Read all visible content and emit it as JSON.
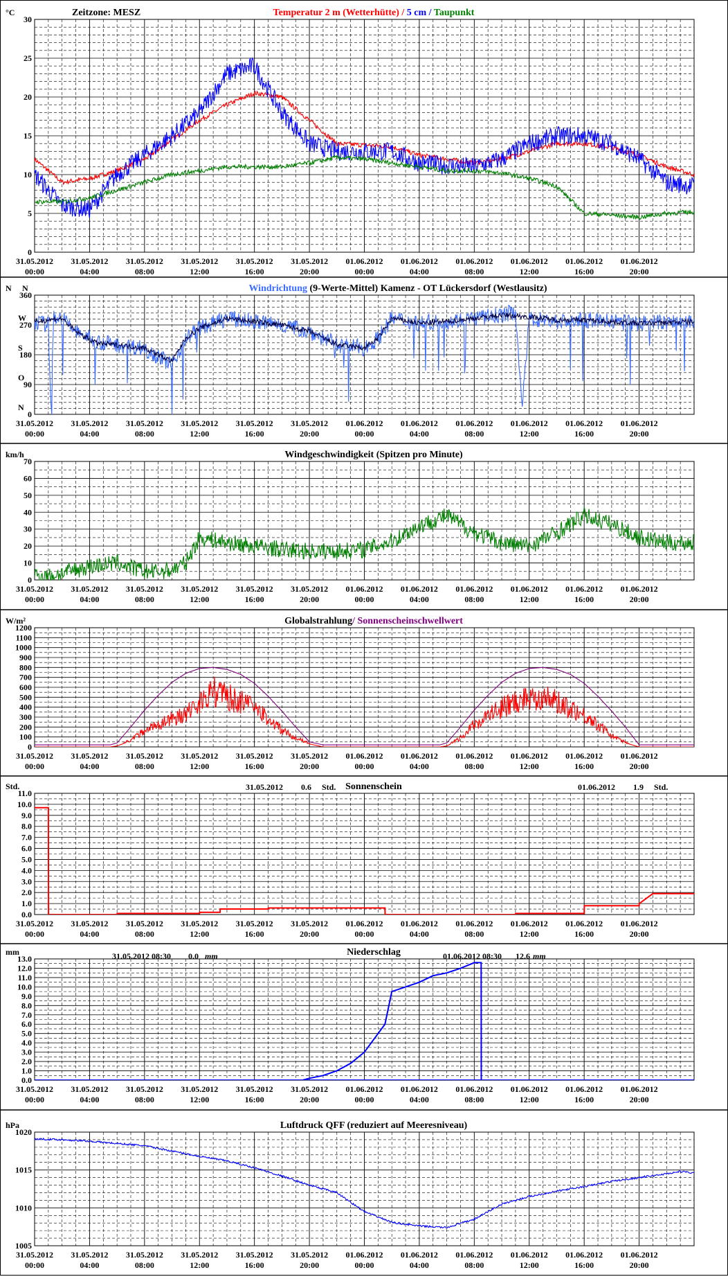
{
  "x_tick_labels": [
    [
      "31.05.2012",
      "00:00"
    ],
    [
      "31.05.2012",
      "04:00"
    ],
    [
      "31.05.2012",
      "08:00"
    ],
    [
      "31.05.2012",
      "12:00"
    ],
    [
      "31.05.2012",
      "16:00"
    ],
    [
      "31.05.2012",
      "20:00"
    ],
    [
      "01.06.2012",
      "00:00"
    ],
    [
      "01.06.2012",
      "04:00"
    ],
    [
      "01.06.2012",
      "08:00"
    ],
    [
      "01.06.2012",
      "12:00"
    ],
    [
      "01.06.2012",
      "16:00"
    ],
    [
      "01.06.2012",
      "20:00"
    ]
  ],
  "colors": {
    "red": "#ff0000",
    "blue": "#0000ff",
    "green": "#008000",
    "lightblue": "#3b6cff",
    "navy": "#000040",
    "purple": "#800080"
  },
  "chart_data": [
    {
      "id": "temp",
      "type": "line",
      "unit": "°C",
      "ylim": [
        0,
        30
      ],
      "yticks": [
        0,
        5,
        10,
        15,
        20,
        25,
        30
      ],
      "annotations": [
        {
          "text": "Zeitzone: MESZ"
        }
      ],
      "title_parts": [
        {
          "text": "Temperatur 2 m (Wetterhütte)",
          "color": "#ff0000"
        },
        {
          "text": " / ",
          "color": "#ff0000"
        },
        {
          "text": "5 cm",
          "color": "#0000ff"
        },
        {
          "text": " / ",
          "color": "#0000ff"
        },
        {
          "text": "Taupunkt",
          "color": "#008000"
        }
      ],
      "series": [
        {
          "color": "#ff0000",
          "noise": 0.3,
          "x": [
            0,
            2,
            4,
            6,
            8,
            10,
            12,
            14,
            16,
            18,
            20,
            22,
            24,
            26,
            28,
            30,
            32,
            34,
            36,
            38,
            40,
            42,
            44,
            46,
            48
          ],
          "values": [
            12,
            9,
            9.5,
            10.5,
            12,
            14.5,
            17,
            19,
            20.5,
            20,
            17,
            14,
            13.8,
            13.6,
            12.5,
            12,
            11.5,
            12,
            13,
            14,
            14,
            13.5,
            12.5,
            11,
            10
          ]
        },
        {
          "color": "#0000ff",
          "noise": 1.2,
          "x": [
            0,
            2,
            4,
            6,
            8,
            10,
            12,
            14,
            16,
            18,
            20,
            22,
            24,
            26,
            28,
            30,
            32,
            34,
            36,
            38,
            40,
            42,
            44,
            46,
            48
          ],
          "values": [
            10,
            6,
            5.5,
            10,
            12.5,
            15,
            18,
            23,
            24,
            18,
            14,
            13,
            13,
            13,
            11.5,
            11.2,
            11,
            12,
            14,
            15,
            15,
            14,
            12,
            9,
            8.5
          ]
        },
        {
          "color": "#008000",
          "noise": 0.3,
          "x": [
            0,
            2,
            4,
            6,
            8,
            10,
            12,
            14,
            16,
            18,
            20,
            22,
            24,
            26,
            28,
            30,
            32,
            34,
            36,
            38,
            40,
            42,
            44,
            46,
            48
          ],
          "values": [
            6.5,
            6.5,
            7,
            8,
            9,
            10,
            10.5,
            11,
            11,
            11,
            11.5,
            12.2,
            12,
            11.5,
            11,
            10.5,
            10.5,
            10.2,
            9.5,
            8.5,
            5,
            4.8,
            4.5,
            5,
            5.2
          ]
        }
      ]
    },
    {
      "id": "wdir",
      "type": "line",
      "unit": "N",
      "ylim": [
        0,
        360
      ],
      "yticks": [
        0,
        90,
        180,
        270,
        360
      ],
      "dir_labels": [
        "N",
        "O",
        "S",
        "W",
        "N"
      ],
      "title_parts": [
        {
          "text": "Windrichtung",
          "color": "#3b6cff"
        },
        {
          "text": " (9-Werte-Mittel)",
          "color": "#000000"
        },
        {
          "text": "          Kamenz - OT Lückersdorf (Westlausitz)",
          "color": "#000000"
        }
      ],
      "series": [
        {
          "color": "#3b6cff",
          "noise": 25,
          "x": [
            0,
            1,
            1.2,
            1.4,
            2,
            3,
            4.5,
            6,
            8,
            10,
            11,
            12,
            14,
            16,
            18,
            20,
            22,
            24,
            25,
            26,
            28,
            30,
            32,
            34,
            35,
            35.5,
            36,
            38,
            40,
            44,
            48
          ],
          "values": [
            280,
            270,
            20,
            300,
            290,
            250,
            220,
            210,
            200,
            150,
            230,
            260,
            290,
            280,
            270,
            250,
            210,
            200,
            230,
            290,
            275,
            280,
            290,
            300,
            310,
            20,
            290,
            280,
            285,
            275,
            280
          ]
        },
        {
          "color": "#000040",
          "noise": 8,
          "x": [
            0,
            2,
            3,
            4.5,
            6,
            8,
            10,
            11,
            12,
            14,
            16,
            18,
            20,
            22,
            24,
            25,
            26,
            28,
            30,
            32,
            34,
            36,
            38,
            40,
            44,
            48
          ],
          "values": [
            280,
            290,
            250,
            215,
            210,
            200,
            160,
            230,
            260,
            290,
            280,
            270,
            250,
            210,
            200,
            230,
            290,
            275,
            280,
            290,
            300,
            295,
            285,
            285,
            275,
            280
          ]
        }
      ]
    },
    {
      "id": "wspd",
      "type": "line",
      "unit": "km/h",
      "ylim": [
        0,
        70
      ],
      "yticks": [
        0,
        10,
        20,
        30,
        40,
        50,
        60,
        70
      ],
      "title_parts": [
        {
          "text": "Windgeschwindigkeit (Spitzen pro Minute)",
          "color": "#000000"
        }
      ],
      "series": [
        {
          "color": "#008000",
          "noise": 5,
          "x": [
            0,
            1,
            2,
            4,
            6,
            8,
            9,
            10,
            11,
            12,
            14,
            16,
            18,
            20,
            22,
            24,
            26,
            28,
            30,
            32,
            34,
            36,
            38,
            40,
            42,
            44,
            46,
            48
          ],
          "values": [
            3,
            2,
            4,
            8,
            10,
            5,
            5,
            6,
            10,
            25,
            22,
            20,
            18,
            17,
            17,
            18,
            23,
            32,
            38,
            28,
            22,
            20,
            28,
            38,
            33,
            25,
            22,
            22
          ]
        }
      ]
    },
    {
      "id": "rad",
      "type": "line",
      "unit": "W/m²",
      "ylim": [
        0,
        1200
      ],
      "yticks": [
        0,
        100,
        200,
        300,
        400,
        500,
        600,
        700,
        800,
        900,
        1000,
        1100,
        1200
      ],
      "title_parts": [
        {
          "text": "Globalstrahlung",
          "color": "#000000"
        },
        {
          "text": "/ Sonnenscheinschwellwert",
          "color": "#800080"
        }
      ],
      "series": [
        {
          "color": "#ff0000",
          "noise": 250,
          "x": [
            0,
            5.5,
            6,
            7,
            8,
            9,
            10,
            11,
            12,
            13,
            14,
            15,
            16,
            17,
            18,
            19,
            20,
            21,
            24,
            29.5,
            30,
            31,
            32,
            33,
            34,
            35,
            36,
            37,
            38,
            39,
            40,
            41,
            42,
            43,
            44,
            48
          ],
          "values": [
            0,
            0,
            10,
            60,
            150,
            200,
            250,
            300,
            400,
            500,
            450,
            400,
            350,
            250,
            150,
            80,
            30,
            0,
            0,
            0,
            10,
            80,
            200,
            280,
            350,
            400,
            450,
            450,
            400,
            350,
            280,
            200,
            100,
            40,
            0,
            0
          ]
        },
        {
          "color": "#800080",
          "noise": 0,
          "x": [
            0,
            5.5,
            6,
            7,
            8,
            9,
            10,
            11,
            12,
            13,
            14,
            15,
            16,
            17,
            18,
            19,
            20,
            21,
            24,
            29.5,
            30,
            31,
            32,
            33,
            34,
            35,
            36,
            37,
            38,
            39,
            40,
            41,
            42,
            43,
            44,
            48
          ],
          "values": [
            20,
            20,
            40,
            200,
            370,
            520,
            650,
            740,
            790,
            800,
            780,
            730,
            640,
            510,
            360,
            200,
            50,
            20,
            20,
            20,
            40,
            200,
            370,
            520,
            650,
            740,
            790,
            800,
            780,
            730,
            640,
            510,
            360,
            200,
            20,
            20
          ]
        }
      ]
    },
    {
      "id": "sun",
      "type": "line",
      "unit": "Std.",
      "ylim": [
        0,
        11
      ],
      "yticks": [
        0,
        1,
        2,
        3,
        4,
        5,
        6,
        7,
        8,
        9,
        10,
        11
      ],
      "yticklabels": [
        "0.0",
        "1.0",
        "2.0",
        "3.0",
        "4.0",
        "5.0",
        "6.0",
        "7.0",
        "8.0",
        "9.0",
        "10.0",
        "11.0"
      ],
      "title_parts": [
        {
          "text": "Sonnenschein",
          "color": "#000000"
        }
      ],
      "annotations": [
        {
          "text": "31.05.2012"
        },
        {
          "text": "0.6"
        },
        {
          "text": "Std."
        },
        {
          "text": "01.06.2012"
        },
        {
          "text": "1.9"
        },
        {
          "text": "Std."
        }
      ],
      "series": [
        {
          "color": "#ff0000",
          "noise": 0,
          "x": [
            0,
            1,
            1.01,
            6,
            6.01,
            12,
            12.01,
            13.5,
            13.51,
            17,
            17.01,
            25.5,
            25.51,
            35,
            35.01,
            40,
            40.01,
            44,
            44.01,
            45,
            45.01,
            48
          ],
          "values": [
            9.7,
            9.7,
            0,
            0,
            0.1,
            0.1,
            0.2,
            0.2,
            0.5,
            0.5,
            0.6,
            0.6,
            0,
            0,
            0.1,
            0.1,
            0.8,
            0.8,
            1.0,
            1.9,
            1.9,
            1.9
          ]
        }
      ]
    },
    {
      "id": "rain",
      "type": "line",
      "unit": "mm",
      "ylim": [
        0,
        13
      ],
      "yticks": [
        0,
        1,
        2,
        3,
        4,
        5,
        6,
        7,
        8,
        9,
        10,
        11,
        12,
        13
      ],
      "yticklabels": [
        "0.0",
        "1.0",
        "2.0",
        "3.0",
        "4.0",
        "5.0",
        "6.0",
        "7.0",
        "8.0",
        "9.0",
        "10.0",
        "11.0",
        "12.0",
        "13.0"
      ],
      "title_parts": [
        {
          "text": "Niederschlag",
          "color": "#000000"
        }
      ],
      "annotations": [
        {
          "text": "31.05.2012 08:30"
        },
        {
          "text": "0.0"
        },
        {
          "text": "mm"
        },
        {
          "text": "01.06.2012 08:30"
        },
        {
          "text": "12.6"
        },
        {
          "text": "mm"
        }
      ],
      "series": [
        {
          "color": "#0000ff",
          "noise": 0,
          "x": [
            0,
            19.5,
            20,
            21,
            22,
            23,
            24,
            25,
            25.5,
            26,
            27,
            28,
            29,
            30,
            31,
            32,
            32.5,
            32.51,
            48
          ],
          "values": [
            0,
            0,
            0.2,
            0.5,
            1.0,
            1.8,
            3.0,
            5.0,
            6.0,
            9.5,
            10.0,
            10.5,
            11.2,
            11.5,
            12.0,
            12.6,
            12.6,
            0,
            0
          ]
        },
        {
          "color": "#0000ff",
          "noise": 0,
          "x": [
            0,
            32.5,
            32.51,
            48
          ],
          "values": [
            0,
            0,
            0,
            0
          ]
        }
      ]
    },
    {
      "id": "press",
      "type": "line",
      "unit": "hPa",
      "ylim": [
        1005,
        1020
      ],
      "yticks": [
        1005,
        1010,
        1015,
        1020
      ],
      "title_parts": [
        {
          "text": "Luftdruck QFF (reduziert auf Meeresniveau)",
          "color": "#000000"
        }
      ],
      "series": [
        {
          "color": "#0000ff",
          "noise": 0.12,
          "x": [
            0,
            2,
            4,
            6,
            8,
            10,
            12,
            14,
            16,
            18,
            20,
            22,
            24,
            26,
            28,
            30,
            32,
            34,
            36,
            38,
            40,
            42,
            44,
            46,
            47,
            48
          ],
          "values": [
            1019.1,
            1019,
            1018.8,
            1018.5,
            1018.2,
            1017.5,
            1016.8,
            1016.2,
            1015.3,
            1014.2,
            1013,
            1012,
            1009.5,
            1008.1,
            1007.6,
            1007.4,
            1008.5,
            1010.5,
            1011.5,
            1012.2,
            1012.8,
            1013.5,
            1014,
            1014.5,
            1014.8,
            1014.6
          ]
        }
      ]
    }
  ]
}
